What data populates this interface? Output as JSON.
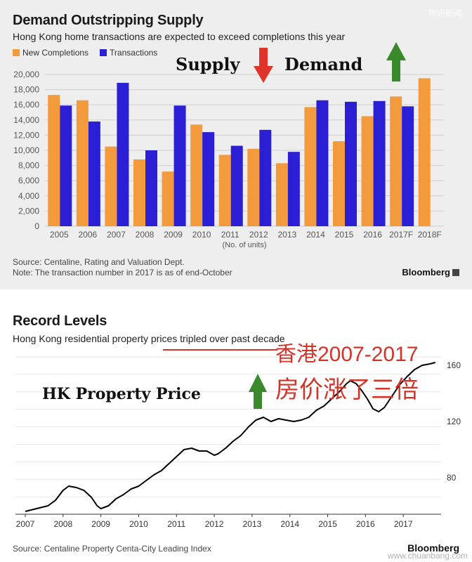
{
  "watermark_top": "腾讯新闻",
  "watermark_bottom": "www.chuanbang.com",
  "chart_data": [
    {
      "type": "bar",
      "title": "Demand Outstripping Supply",
      "subtitle": "Hong Kong home transactions are expected to exceed completions this year",
      "categories": [
        "2005",
        "2006",
        "2007",
        "2008",
        "2009",
        "2010",
        "2011",
        "2012",
        "2013",
        "2014",
        "2015",
        "2016",
        "2017F",
        "2018F"
      ],
      "xlabel": "(No. of units)",
      "ylabel": "",
      "ylim": [
        0,
        20000
      ],
      "yticks": [
        0,
        2000,
        4000,
        6000,
        8000,
        10000,
        12000,
        14000,
        16000,
        18000,
        20000
      ],
      "ytick_labels": [
        "0",
        "2,000",
        "4,000",
        "6,000",
        "8,000",
        "10,000",
        "12,000",
        "14,000",
        "16,000",
        "18,000",
        "20,000"
      ],
      "series": [
        {
          "name": "New Completions",
          "color": "#f39a3c",
          "values": [
            17300,
            16600,
            10500,
            8800,
            7200,
            13400,
            9400,
            10200,
            8300,
            15700,
            11200,
            14500,
            17100,
            19500
          ]
        },
        {
          "name": "Transactions",
          "color": "#2b1fd6",
          "values": [
            15900,
            13800,
            18900,
            10000,
            15900,
            12400,
            10600,
            12700,
            9800,
            16600,
            16400,
            16500,
            15800,
            null
          ]
        }
      ],
      "grid": true,
      "legend": "top-left",
      "source": "Source: Centaline, Rating and Valuation Dept.",
      "note": "Note: The transaction number in 2017 is as of end-October",
      "brand": "Bloomberg",
      "annotations": {
        "supply": "Supply",
        "demand": "Demand",
        "supply_arrow": "down",
        "demand_arrow": "up"
      }
    },
    {
      "type": "line",
      "title": "Record Levels",
      "subtitle": "Hong Kong residential property prices tripled over past decade",
      "x_ticks": [
        "2007",
        "2008",
        "2009",
        "2010",
        "2011",
        "2012",
        "2013",
        "2014",
        "2015",
        "2016",
        "2017"
      ],
      "yticks": [
        80,
        120,
        160
      ],
      "ylim": [
        54,
        166
      ],
      "xlim": [
        2007.0,
        2018.0
      ],
      "series": [
        {
          "color": "#000000",
          "points": [
            [
              2007.0,
              56
            ],
            [
              2007.3,
              58
            ],
            [
              2007.6,
              60
            ],
            [
              2007.8,
              64
            ],
            [
              2008.0,
              71
            ],
            [
              2008.15,
              74
            ],
            [
              2008.35,
              73
            ],
            [
              2008.55,
              71
            ],
            [
              2008.75,
              66
            ],
            [
              2008.9,
              60
            ],
            [
              2009.0,
              58
            ],
            [
              2009.2,
              60
            ],
            [
              2009.4,
              65
            ],
            [
              2009.6,
              68
            ],
            [
              2009.8,
              72
            ],
            [
              2010.0,
              74
            ],
            [
              2010.2,
              78
            ],
            [
              2010.4,
              82
            ],
            [
              2010.6,
              85
            ],
            [
              2010.8,
              90
            ],
            [
              2011.0,
              95
            ],
            [
              2011.2,
              100
            ],
            [
              2011.4,
              101
            ],
            [
              2011.6,
              99
            ],
            [
              2011.8,
              99
            ],
            [
              2012.0,
              96
            ],
            [
              2012.1,
              97
            ],
            [
              2012.3,
              101
            ],
            [
              2012.5,
              106
            ],
            [
              2012.7,
              110
            ],
            [
              2012.9,
              116
            ],
            [
              2013.1,
              121
            ],
            [
              2013.3,
              123
            ],
            [
              2013.5,
              120
            ],
            [
              2013.7,
              122
            ],
            [
              2013.9,
              121
            ],
            [
              2014.1,
              120
            ],
            [
              2014.3,
              121
            ],
            [
              2014.5,
              123
            ],
            [
              2014.7,
              128
            ],
            [
              2014.9,
              131
            ],
            [
              2015.1,
              136
            ],
            [
              2015.3,
              141
            ],
            [
              2015.5,
              147
            ],
            [
              2015.6,
              149
            ],
            [
              2015.75,
              147
            ],
            [
              2015.9,
              142
            ],
            [
              2016.05,
              136
            ],
            [
              2016.2,
              129
            ],
            [
              2016.35,
              127
            ],
            [
              2016.5,
              130
            ],
            [
              2016.7,
              138
            ],
            [
              2016.9,
              146
            ],
            [
              2017.1,
              152
            ],
            [
              2017.3,
              157
            ],
            [
              2017.5,
              160
            ],
            [
              2017.7,
              161
            ],
            [
              2017.85,
              162
            ]
          ]
        }
      ],
      "grid": true,
      "source": "Source: Centaline Property Centa-City Leading Index",
      "brand": "Bloomberg",
      "annotations": {
        "left": "HK Property Price",
        "left_arrow": "up",
        "chinese_1": "香港2007-2017",
        "chinese_2": "房价涨了三倍"
      }
    }
  ]
}
